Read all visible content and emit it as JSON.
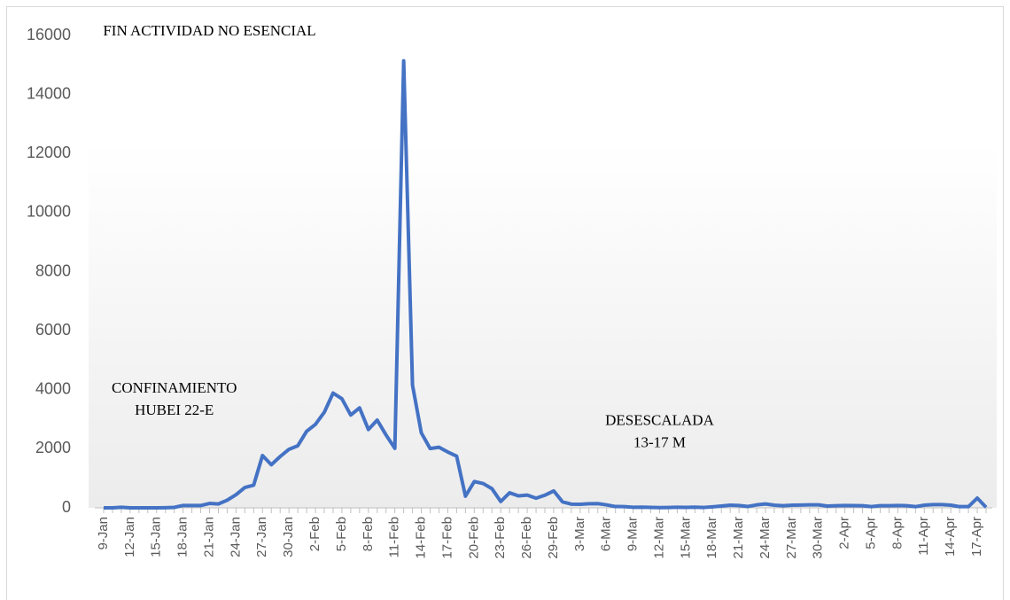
{
  "chart_data": {
    "type": "line",
    "annotations": [
      {
        "lines": [
          "FIN ACTIVIDAD NO ESENCIAL"
        ],
        "x": 12,
        "y": 16000
      },
      {
        "lines": [
          "CONFINAMIENTO",
          "HUBEI 22-E"
        ],
        "x": 8,
        "y": 3900
      },
      {
        "lines": [
          "DESESCALADA",
          "13-17 M"
        ],
        "x": 63,
        "y": 2800
      }
    ],
    "categories": [
      "9-Jan",
      null,
      null,
      "12-Jan",
      null,
      null,
      "15-Jan",
      null,
      null,
      "18-Jan",
      null,
      null,
      "21-Jan",
      null,
      null,
      "24-Jan",
      null,
      null,
      "27-Jan",
      null,
      null,
      "30-Jan",
      null,
      null,
      "2-Feb",
      null,
      null,
      "5-Feb",
      null,
      null,
      "8-Feb",
      null,
      null,
      "11-Feb",
      null,
      null,
      "14-Feb",
      null,
      null,
      "17-Feb",
      null,
      null,
      "20-Feb",
      null,
      null,
      "23-Feb",
      null,
      null,
      "26-Feb",
      null,
      null,
      "29-Feb",
      null,
      null,
      "3-Mar",
      null,
      null,
      "6-Mar",
      null,
      null,
      "9-Mar",
      null,
      null,
      "12-Mar",
      null,
      null,
      "15-Mar",
      null,
      null,
      "18-Mar",
      null,
      null,
      "21-Mar",
      null,
      null,
      "24-Mar",
      null,
      null,
      "27-Mar",
      null,
      null,
      "30-Mar",
      null,
      null,
      "2-Apr",
      null,
      null,
      "5-Apr",
      null,
      null,
      "8-Apr",
      null,
      null,
      "11-Apr",
      null,
      null,
      "14-Apr",
      null,
      null,
      "17-Apr",
      null
    ],
    "series": [
      {
        "color": "#4472c4",
        "values": [
          0,
          0,
          20,
          0,
          0,
          0,
          0,
          5,
          15,
          80,
          80,
          77,
          149,
          131,
          259,
          444,
          688,
          769,
          1771,
          1459,
          1737,
          1982,
          2102,
          2590,
          2829,
          3235,
          3887,
          3694,
          3143,
          3385,
          2652,
          2973,
          2467,
          2015,
          15141,
          4156,
          2538,
          2007,
          2052,
          1890,
          1750,
          394,
          889,
          823,
          648,
          214,
          508,
          406,
          433,
          327,
          427,
          573,
          202,
          125,
          119,
          139,
          143,
          99,
          44,
          40,
          19,
          24,
          15,
          8,
          11,
          20,
          16,
          21,
          13,
          34,
          60,
          90,
          80,
          46,
          100,
          130,
          90,
          70,
          90,
          95,
          100,
          100,
          60,
          70,
          80,
          75,
          70,
          40,
          70,
          70,
          80,
          70,
          40,
          90,
          110,
          110,
          90,
          40,
          40,
          330,
          20
        ]
      }
    ],
    "ylim": [
      0,
      16000
    ],
    "yticks": [
      0,
      2000,
      4000,
      6000,
      8000,
      10000,
      12000,
      14000,
      16000
    ]
  }
}
